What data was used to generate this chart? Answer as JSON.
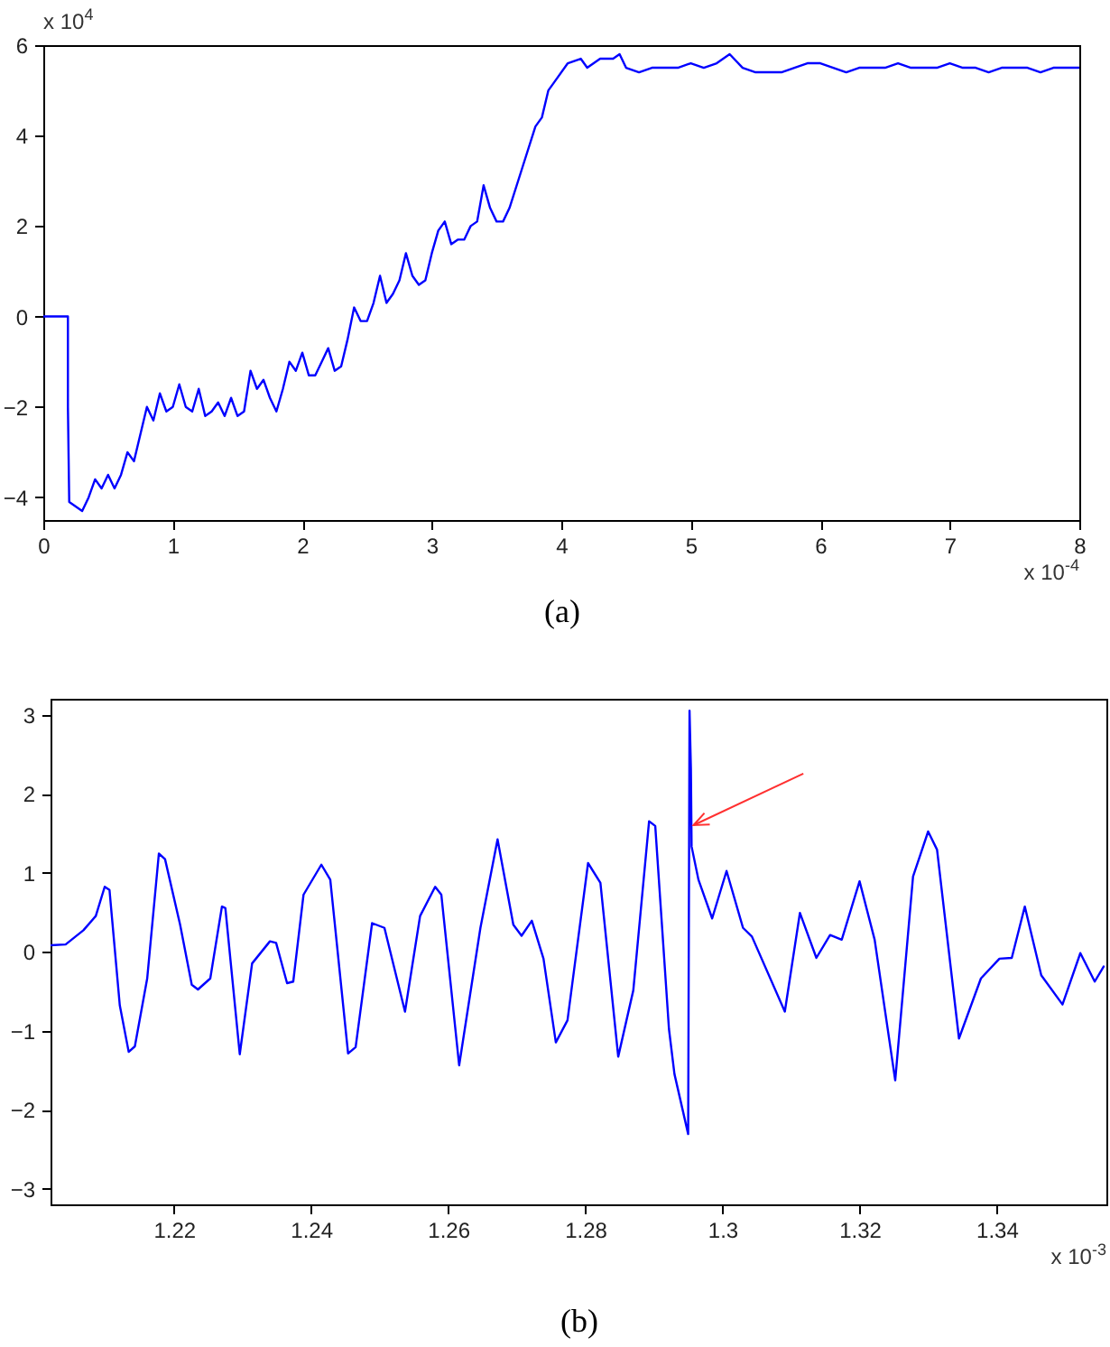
{
  "chart_data": [
    {
      "type": "line",
      "xlabel": "(a)",
      "annotations": [
        "x 10$^{4}$",
        "x 10$^{-4}$"
      ],
      "xlim": [
        0,
        8
      ],
      "xticks": [
        0,
        1,
        2,
        3,
        4,
        5,
        6,
        7,
        8
      ],
      "ylim": [
        -4.5,
        6
      ],
      "yticks": [
        -4,
        -2,
        0,
        2,
        4,
        6
      ],
      "grid": false,
      "line_style": "solid",
      "series": [
        {
          "color": "#0000ff",
          "x": [
            0,
            0.19,
            0.19,
            0.2,
            0.25,
            0.3,
            0.35,
            0.4,
            0.45,
            0.5,
            0.55,
            0.6,
            0.65,
            0.7,
            0.75,
            0.8,
            0.85,
            0.9,
            0.95,
            1.0,
            1.05,
            1.1,
            1.15,
            1.2,
            1.25,
            1.3,
            1.35,
            1.4,
            1.45,
            1.5,
            1.55,
            1.6,
            1.65,
            1.7,
            1.75,
            1.8,
            1.85,
            1.9,
            1.95,
            2.0,
            2.05,
            2.1,
            2.15,
            2.2,
            2.25,
            2.3,
            2.35,
            2.4,
            2.45,
            2.5,
            2.55,
            2.6,
            2.65,
            2.7,
            2.75,
            2.8,
            2.85,
            2.9,
            2.95,
            3.0,
            3.05,
            3.1,
            3.15,
            3.2,
            3.25,
            3.3,
            3.35,
            3.4,
            3.45,
            3.5,
            3.55,
            3.6,
            3.7,
            3.8,
            3.85,
            3.9,
            3.95,
            4.05,
            4.15,
            4.2,
            4.3,
            4.4,
            4.45,
            4.5,
            4.6,
            4.7,
            4.8,
            4.9,
            5.0,
            5.1,
            5.2,
            5.3,
            5.4,
            5.5,
            5.6,
            5.7,
            5.8,
            5.9,
            6.0,
            6.1,
            6.2,
            6.3,
            6.4,
            6.5,
            6.6,
            6.7,
            6.8,
            6.9,
            7.0,
            7.1,
            7.2,
            7.3,
            7.4,
            7.5,
            7.6,
            7.7,
            7.8,
            7.9,
            8.0
          ],
          "values": [
            0,
            0,
            -2,
            -4.1,
            -4.2,
            -4.3,
            -4.0,
            -3.6,
            -3.8,
            -3.5,
            -3.8,
            -3.5,
            -3.0,
            -3.2,
            -2.6,
            -2.0,
            -2.3,
            -1.7,
            -2.1,
            -2.0,
            -1.5,
            -2.0,
            -2.1,
            -1.6,
            -2.2,
            -2.1,
            -1.9,
            -2.2,
            -1.8,
            -2.2,
            -2.1,
            -1.2,
            -1.6,
            -1.4,
            -1.8,
            -2.1,
            -1.6,
            -1.0,
            -1.2,
            -0.8,
            -1.3,
            -1.3,
            -1.0,
            -0.7,
            -1.2,
            -1.1,
            -0.5,
            0.2,
            -0.1,
            -0.1,
            0.3,
            0.9,
            0.3,
            0.5,
            0.8,
            1.4,
            0.9,
            0.7,
            0.8,
            1.4,
            1.9,
            2.1,
            1.6,
            1.7,
            1.7,
            2.0,
            2.1,
            2.9,
            2.4,
            2.1,
            2.1,
            2.4,
            3.3,
            4.2,
            4.4,
            5.0,
            5.2,
            5.6,
            5.7,
            5.5,
            5.7,
            5.7,
            5.8,
            5.5,
            5.4,
            5.5,
            5.5,
            5.5,
            5.6,
            5.5,
            5.6,
            5.8,
            5.5,
            5.4,
            5.4,
            5.4,
            5.5,
            5.6,
            5.6,
            5.5,
            5.4,
            5.5,
            5.5,
            5.5,
            5.6,
            5.5,
            5.5,
            5.5,
            5.6,
            5.5,
            5.5,
            5.4,
            5.5,
            5.5,
            5.5,
            5.4,
            5.5,
            5.5,
            5.5
          ]
        }
      ]
    },
    {
      "type": "line",
      "xlabel": "(b)",
      "annotations": [
        "x 10$^{-3}$"
      ],
      "xlim": [
        1.202,
        1.356
      ],
      "xticks": [
        1.22,
        1.24,
        1.26,
        1.28,
        1.3,
        1.32,
        1.34
      ],
      "ylim": [
        -3.2,
        3.2
      ],
      "yticks": [
        -3,
        -2,
        -1,
        0,
        1,
        2,
        3
      ],
      "grid": false,
      "line_style": "solid",
      "series": [
        {
          "color": "#0000ff",
          "x": [
            1.202,
            1.2042,
            1.2068,
            1.2086,
            1.2099,
            1.2106,
            1.2121,
            1.2134,
            1.2143,
            1.2161,
            1.2178,
            1.2187,
            1.2209,
            1.2226,
            1.2235,
            1.2253,
            1.227,
            1.2275,
            1.2296,
            1.2314,
            1.234,
            1.2349,
            1.2365,
            1.2374,
            1.2389,
            1.2415,
            1.2428,
            1.2454,
            1.2465,
            1.2489,
            1.2507,
            1.2537,
            1.2559,
            1.2581,
            1.259,
            1.2616,
            1.2647,
            1.2672,
            1.2695,
            1.2707,
            1.2722,
            1.2739,
            1.2757,
            1.2774,
            1.2804,
            1.2822,
            1.2848,
            1.287,
            1.2893,
            1.2902,
            1.2922,
            1.293,
            1.295,
            1.2952,
            1.2954,
            1.2955,
            1.2965,
            1.2985,
            1.3006,
            1.303,
            1.3043,
            1.3091,
            1.3113,
            1.3137,
            1.3157,
            1.3174,
            1.32,
            1.3222,
            1.3252,
            1.3278,
            1.33,
            1.3313,
            1.3345,
            1.3377,
            1.3404,
            1.3422,
            1.3441,
            1.3465,
            1.3496,
            1.3522,
            1.3543,
            1.3556
          ],
          "values": [
            0.08,
            0.09,
            0.27,
            0.45,
            0.82,
            0.78,
            -0.68,
            -1.27,
            -1.2,
            -0.34,
            1.24,
            1.17,
            0.34,
            -0.42,
            -0.48,
            -0.34,
            0.57,
            0.55,
            -1.3,
            -0.15,
            0.13,
            0.11,
            -0.4,
            -0.38,
            0.72,
            1.1,
            0.91,
            -1.29,
            -1.21,
            0.36,
            0.3,
            -0.76,
            0.45,
            0.82,
            0.72,
            -1.44,
            0.3,
            1.42,
            0.34,
            0.2,
            0.39,
            -0.09,
            -1.15,
            -0.87,
            1.12,
            0.87,
            -1.33,
            -0.49,
            1.65,
            1.59,
            -0.98,
            -1.55,
            -2.31,
            3.05,
            2.31,
            1.33,
            0.91,
            0.42,
            1.02,
            0.3,
            0.19,
            -0.76,
            0.49,
            -0.08,
            0.21,
            0.15,
            0.89,
            0.15,
            -1.63,
            0.95,
            1.52,
            1.29,
            -1.1,
            -0.34,
            -0.09,
            -0.08,
            0.57,
            -0.3,
            -0.67,
            -0.02,
            -0.38,
            -0.19
          ]
        }
      ]
    }
  ]
}
